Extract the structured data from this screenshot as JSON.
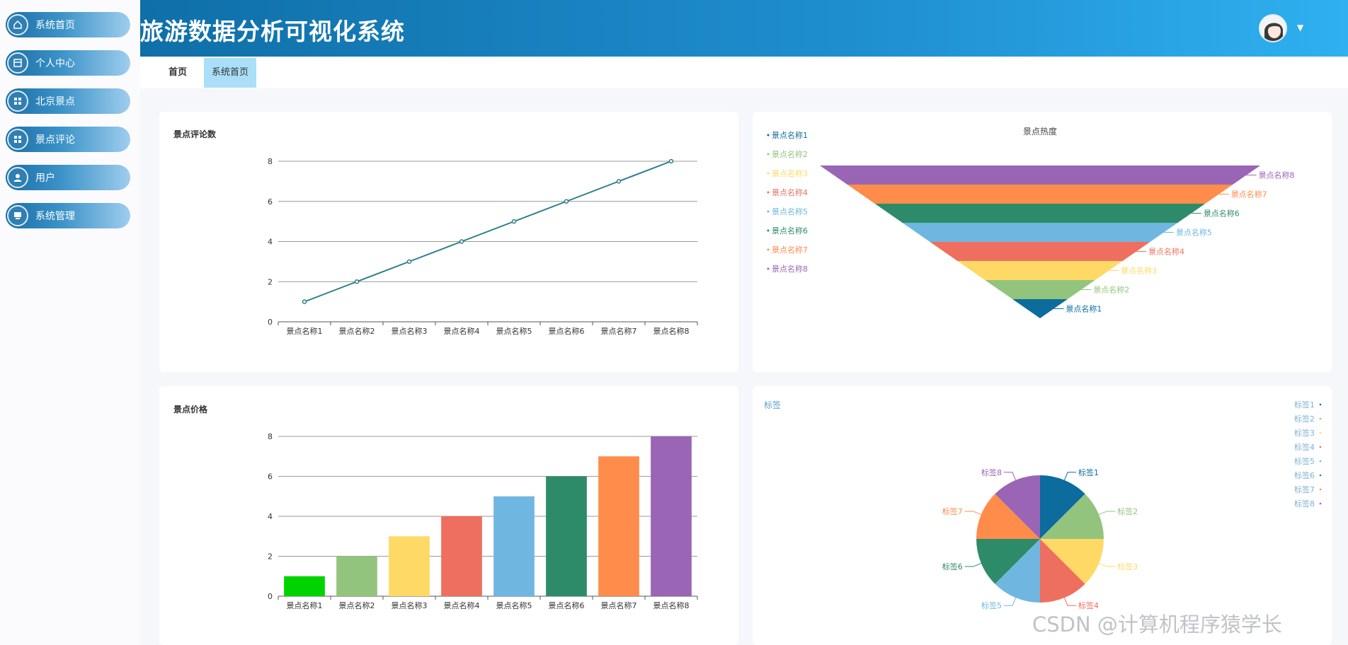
{
  "app": {
    "title": "旅游数据分析可视化系统"
  },
  "sidebar": {
    "items": [
      {
        "label": "系统首页",
        "icon": "home-icon"
      },
      {
        "label": "个人中心",
        "icon": "profile-icon"
      },
      {
        "label": "北京景点",
        "icon": "grid-icon"
      },
      {
        "label": "景点评论",
        "icon": "grid-icon"
      },
      {
        "label": "用户",
        "icon": "user-icon"
      },
      {
        "label": "系统管理",
        "icon": "monitor-icon"
      }
    ]
  },
  "header": {
    "dropdown_icon": "chevron-down-icon"
  },
  "tabs": [
    {
      "label": "首页"
    },
    {
      "label": "系统首页"
    }
  ],
  "watermark": "CSDN @计算机程序猿学长",
  "charts": {
    "comments": {
      "title": "景点评论数"
    },
    "funnel": {
      "title": "景点热度"
    },
    "price": {
      "title": "景点价格"
    },
    "pie": {
      "title": "标签"
    }
  },
  "chart_data": [
    {
      "type": "line",
      "title": "景点评论数",
      "x": [
        "景点名称1",
        "景点名称2",
        "景点名称3",
        "景点名称4",
        "景点名称5",
        "景点名称6",
        "景点名称7",
        "景点名称8"
      ],
      "values": [
        1,
        2,
        3,
        4,
        5,
        6,
        7,
        8
      ],
      "ylim": [
        0,
        8
      ],
      "yticks": [
        0,
        2,
        4,
        6,
        8
      ],
      "color": "#2a7f8a",
      "grid": true
    },
    {
      "type": "funnel",
      "title": "景点热度",
      "categories": [
        "景点名称1",
        "景点名称2",
        "景点名称3",
        "景点名称4",
        "景点名称5",
        "景点名称6",
        "景点名称7",
        "景点名称8"
      ],
      "values": [
        1,
        2,
        3,
        4,
        5,
        6,
        7,
        8
      ],
      "colors": [
        "#0c6c9d",
        "#93c47d",
        "#ffd966",
        "#ee6f5f",
        "#6fb7e0",
        "#2e8b6a",
        "#ff8c4a",
        "#9a65b5"
      ],
      "legend": "left"
    },
    {
      "type": "bar",
      "title": "景点价格",
      "categories": [
        "景点名称1",
        "景点名称2",
        "景点名称3",
        "景点名称4",
        "景点名称5",
        "景点名称6",
        "景点名称7",
        "景点名称8"
      ],
      "values": [
        1,
        2,
        3,
        4,
        5,
        6,
        7,
        8
      ],
      "ylim": [
        0,
        8
      ],
      "yticks": [
        0,
        2,
        4,
        6,
        8
      ],
      "colors": [
        "#00d400",
        "#93c47d",
        "#ffd966",
        "#ee6f5f",
        "#6fb7e0",
        "#2e8b6a",
        "#ff8c4a",
        "#9a65b5"
      ],
      "grid": true
    },
    {
      "type": "pie",
      "title": "标签",
      "categories": [
        "标签1",
        "标签2",
        "标签3",
        "标签4",
        "标签5",
        "标签6",
        "标签7",
        "标签8"
      ],
      "values": [
        1,
        1,
        1,
        1,
        1,
        1,
        1,
        1
      ],
      "colors": [
        "#0c6c9d",
        "#93c47d",
        "#ffd966",
        "#ee6f5f",
        "#6fb7e0",
        "#2e8b6a",
        "#ff8c4a",
        "#9a65b5"
      ],
      "legend": "top-right"
    }
  ]
}
